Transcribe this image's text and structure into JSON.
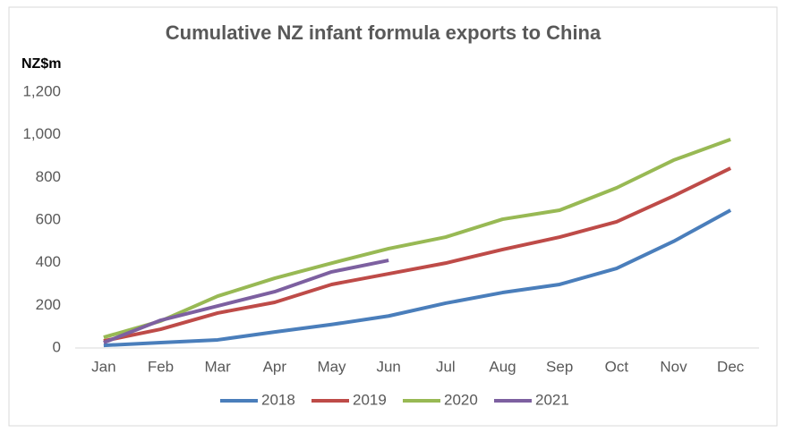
{
  "chart_data": {
    "type": "line",
    "title": "Cumulative NZ infant formula exports to China",
    "y_label": "NZ$m",
    "categories": [
      "Jan",
      "Feb",
      "Mar",
      "Apr",
      "May",
      "Jun",
      "Jul",
      "Aug",
      "Sep",
      "Oct",
      "Nov",
      "Dec"
    ],
    "series": [
      {
        "name": "2018",
        "color": "#4a7ebb",
        "values": [
          12,
          25,
          38,
          75,
          110,
          150,
          210,
          260,
          298,
          373,
          500,
          646
        ]
      },
      {
        "name": "2019",
        "color": "#be4b48",
        "values": [
          33,
          88,
          164,
          214,
          298,
          348,
          398,
          462,
          520,
          592,
          713,
          843
        ]
      },
      {
        "name": "2020",
        "color": "#98b954",
        "values": [
          50,
          126,
          243,
          327,
          398,
          466,
          520,
          604,
          646,
          751,
          881,
          978
        ]
      },
      {
        "name": "2021",
        "color": "#7d60a0",
        "values": [
          25,
          130,
          197,
          264,
          357,
          411,
          null,
          null,
          null,
          null,
          null,
          null
        ]
      }
    ],
    "ylim": [
      0,
      1200
    ],
    "yticks": [
      0,
      200,
      400,
      600,
      800,
      {
        "value": 1000,
        "label": "1,000"
      },
      {
        "value": 1200,
        "label": "1,200"
      }
    ],
    "legend": "bottom"
  }
}
